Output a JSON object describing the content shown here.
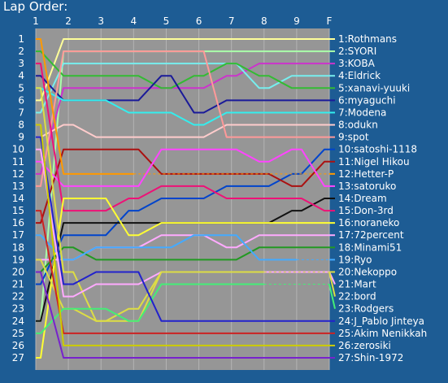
{
  "chart_data": {
    "type": "line",
    "title": "Lap Order:",
    "x": [
      "1",
      "2",
      "3",
      "4",
      "5",
      "6",
      "7",
      "8",
      "9",
      "F"
    ],
    "ylim": [
      1,
      27
    ],
    "y_inverted": true,
    "y_ticks": [
      1,
      2,
      3,
      4,
      5,
      6,
      7,
      8,
      9,
      10,
      11,
      12,
      13,
      14,
      15,
      16,
      17,
      18,
      19,
      20,
      21,
      22,
      23,
      24,
      25,
      26,
      27
    ],
    "grid": true,
    "colors": {
      "background": "#1d5c94",
      "plot_area": "#969696",
      "grid": "#b4b4b4",
      "text": "#ffffff"
    },
    "series": [
      {
        "name": "1:Rothmans",
        "color": "#ffff99",
        "positions": [
          6,
          1,
          1,
          1,
          1,
          1,
          1,
          1,
          1,
          1
        ]
      },
      {
        "name": "2:SYORI",
        "color": "#aaffaa",
        "positions": [
          24,
          2,
          2,
          2,
          2,
          2,
          2,
          2,
          2,
          2
        ]
      },
      {
        "name": "3:KOBA",
        "color": "#cc33cc",
        "positions": [
          12,
          5,
          5,
          5,
          5,
          5,
          4,
          3,
          3,
          3
        ]
      },
      {
        "name": "4:Eldrick",
        "color": "#77eeee",
        "positions": [
          7,
          3,
          3,
          3,
          3,
          3,
          3,
          5,
          4,
          4
        ]
      },
      {
        "name": "5:xanavi-yuuki",
        "color": "#33bb33",
        "positions": [
          2,
          4,
          4,
          4,
          5,
          4,
          3,
          4,
          5,
          5
        ]
      },
      {
        "name": "6:myaguchi",
        "color": "#1a1a99",
        "positions": [
          4,
          6,
          6,
          6,
          4,
          7,
          6,
          6,
          6,
          6
        ]
      },
      {
        "name": "7:Modena",
        "color": "#33eeee",
        "positions": [
          5,
          6,
          6,
          7,
          7,
          8,
          7,
          7,
          7,
          7
        ]
      },
      {
        "name": "8:odukn",
        "color": "#ffcccc",
        "positions": [
          9,
          8,
          9,
          9,
          9,
          9,
          8,
          8,
          8,
          8
        ]
      },
      {
        "name": "9:spot",
        "color": "#ff9999",
        "positions": [
          13,
          2,
          2,
          2,
          2,
          2,
          9,
          9,
          9,
          9
        ]
      },
      {
        "name": "10:satoshi-1118",
        "color": "#0044cc",
        "positions": [
          21,
          17,
          17,
          15,
          14,
          14,
          13,
          13,
          12,
          10
        ]
      },
      {
        "name": "11:Nigel Hikou",
        "color": "#aa1111",
        "positions": [
          16,
          10,
          10,
          10,
          12,
          12,
          12,
          12,
          13,
          11
        ]
      },
      {
        "name": "12:Hetter-P",
        "color": "#ff9900",
        "positions": [
          1,
          12,
          12,
          12
        ]
      },
      {
        "name": "13:satoruko",
        "color": "#ff44ff",
        "positions": [
          11,
          13,
          13,
          13,
          10,
          10,
          10,
          11,
          10,
          13
        ]
      },
      {
        "name": "14:Dream",
        "color": "#111111",
        "positions": [
          24,
          16,
          16,
          16,
          16,
          16,
          16,
          16,
          15,
          14
        ]
      },
      {
        "name": "15:Don-3rd",
        "color": "#ee1177",
        "positions": [
          3,
          15,
          15,
          14,
          13,
          13,
          14,
          14,
          14,
          15
        ]
      },
      {
        "name": "16:noraneko",
        "color": "#ffff33",
        "positions": [
          27,
          14,
          14,
          17,
          16,
          16,
          16,
          16,
          16,
          16
        ]
      },
      {
        "name": "17:72percent",
        "color": "#ffaaff",
        "positions": [
          19,
          19,
          18,
          18,
          17,
          17,
          18,
          17,
          17,
          17
        ]
      },
      {
        "name": "18:Minami51",
        "color": "#229922",
        "positions": [
          20,
          18,
          19,
          19,
          19,
          19,
          19,
          18,
          18,
          18
        ]
      },
      {
        "name": "19:Ryo",
        "color": "#44aaff",
        "positions": [
          17,
          19,
          18,
          18,
          18,
          17,
          17,
          19,
          19
        ]
      },
      {
        "name": "20:Nekoppo",
        "color": "#dddd44",
        "positions": [
          5,
          20,
          24,
          24,
          20,
          20,
          20,
          20
        ]
      },
      {
        "name": "21:Mart",
        "color": "#ffaaff",
        "positions": [
          10,
          22,
          21,
          21,
          20,
          20,
          20,
          20,
          20,
          20
        ]
      },
      {
        "name": "22:bord",
        "color": "#dddd44",
        "positions": [
          19,
          23,
          24,
          23,
          20,
          20,
          20,
          20
        ]
      },
      {
        "name": "23:Rodgers",
        "color": "#44ee77",
        "positions": [
          25,
          23,
          23,
          24,
          21,
          21,
          21,
          21
        ]
      },
      {
        "name": "24:J_Pablo Jinteya",
        "color": "#2222cc",
        "positions": [
          9,
          21,
          20,
          20,
          24,
          24,
          24,
          24,
          24,
          24
        ]
      },
      {
        "name": "25:Akim Nenikkah",
        "color": "#cc2222",
        "positions": [
          15,
          25,
          25,
          25,
          25,
          25,
          25,
          25,
          25,
          25
        ]
      },
      {
        "name": "26:zerosiki",
        "color": "#cccc00",
        "positions": [
          8,
          26,
          26,
          26,
          26,
          26,
          26,
          26,
          26,
          26
        ]
      },
      {
        "name": "27:Shin-1972",
        "color": "#7722cc",
        "positions": [
          20,
          27,
          27,
          27,
          27,
          27,
          27,
          27,
          27,
          27
        ]
      }
    ]
  }
}
